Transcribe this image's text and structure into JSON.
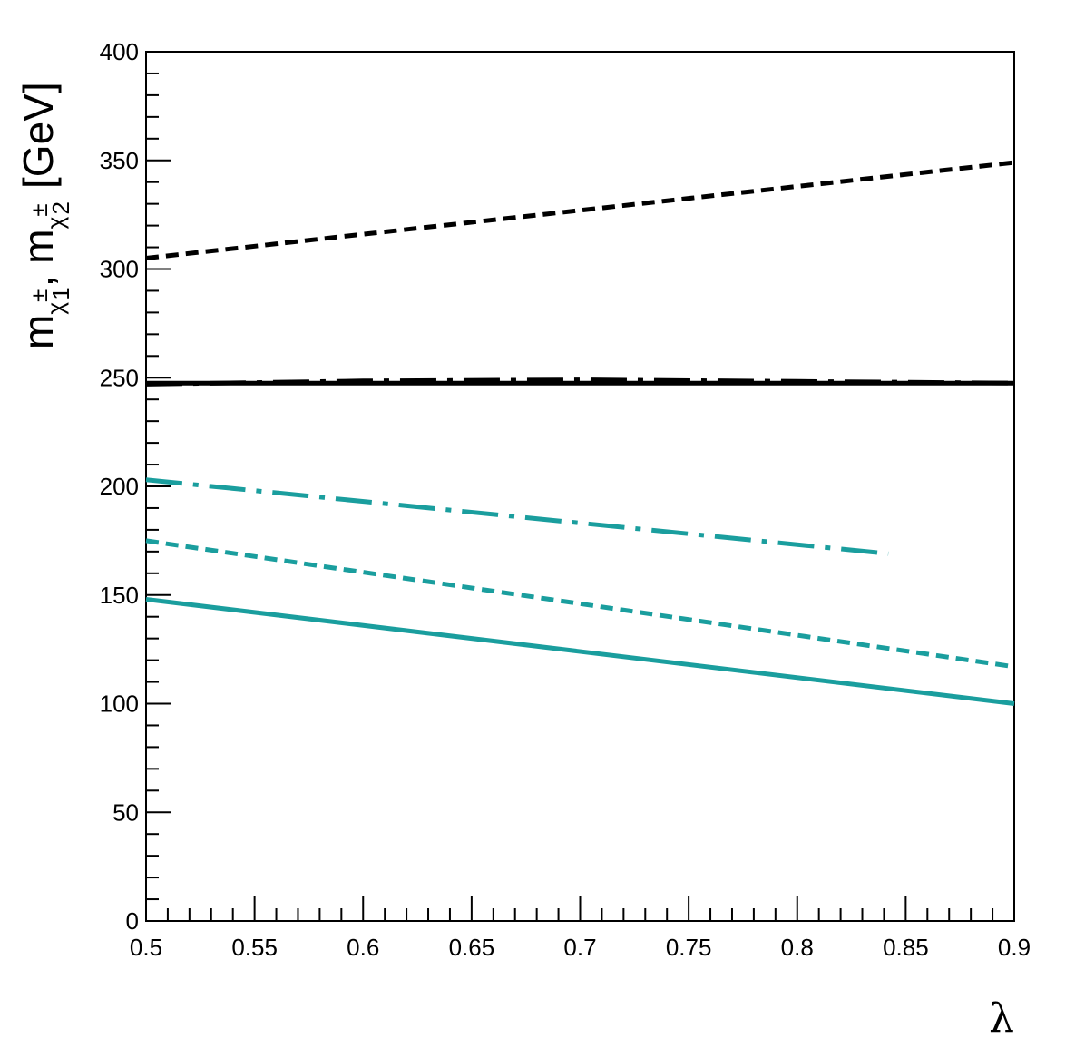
{
  "chart_data": {
    "type": "line",
    "xlabel": "λ",
    "ylabel": {
      "prefix1": "m",
      "sub1": "χ",
      "sub1_sup": "±",
      "sub1_idx": "1",
      "sep": ", m",
      "sub2": "χ",
      "sub2_sup": "±",
      "sub2_idx": "2",
      "unit": "[GeV]"
    },
    "xlim": [
      0.5,
      0.9
    ],
    "ylim": [
      0,
      400
    ],
    "x_ticks": [
      "0.5",
      "0.55",
      "0.6",
      "0.65",
      "0.7",
      "0.75",
      "0.8",
      "0.85",
      "0.9"
    ],
    "y_ticks": [
      "0",
      "50",
      "100",
      "150",
      "200",
      "250",
      "300",
      "350",
      "400"
    ],
    "grid": false,
    "series": [
      {
        "x": [
          0.5,
          0.9
        ],
        "y": [
          148,
          100
        ],
        "color": "#1a9e9e",
        "dash": "solid"
      },
      {
        "x": [
          0.5,
          0.9
        ],
        "y": [
          175,
          117
        ],
        "color": "#1a9e9e",
        "dash": "dotted"
      },
      {
        "x": [
          0.5,
          0.842
        ],
        "y": [
          203,
          169
        ],
        "color": "#1a9e9e",
        "dash": "dashdot"
      },
      {
        "x": [
          0.5,
          0.9
        ],
        "y": [
          247.5,
          247.5
        ],
        "color": "#000000",
        "dash": "solid"
      },
      {
        "x": [
          0.5,
          0.6,
          0.7,
          0.8,
          0.9
        ],
        "y": [
          247,
          248.5,
          249,
          248.3,
          247.5
        ],
        "color": "#000000",
        "dash": "dashdot"
      },
      {
        "x": [
          0.5,
          0.9
        ],
        "y": [
          305,
          349
        ],
        "color": "#000000",
        "dash": "dotted"
      }
    ]
  }
}
